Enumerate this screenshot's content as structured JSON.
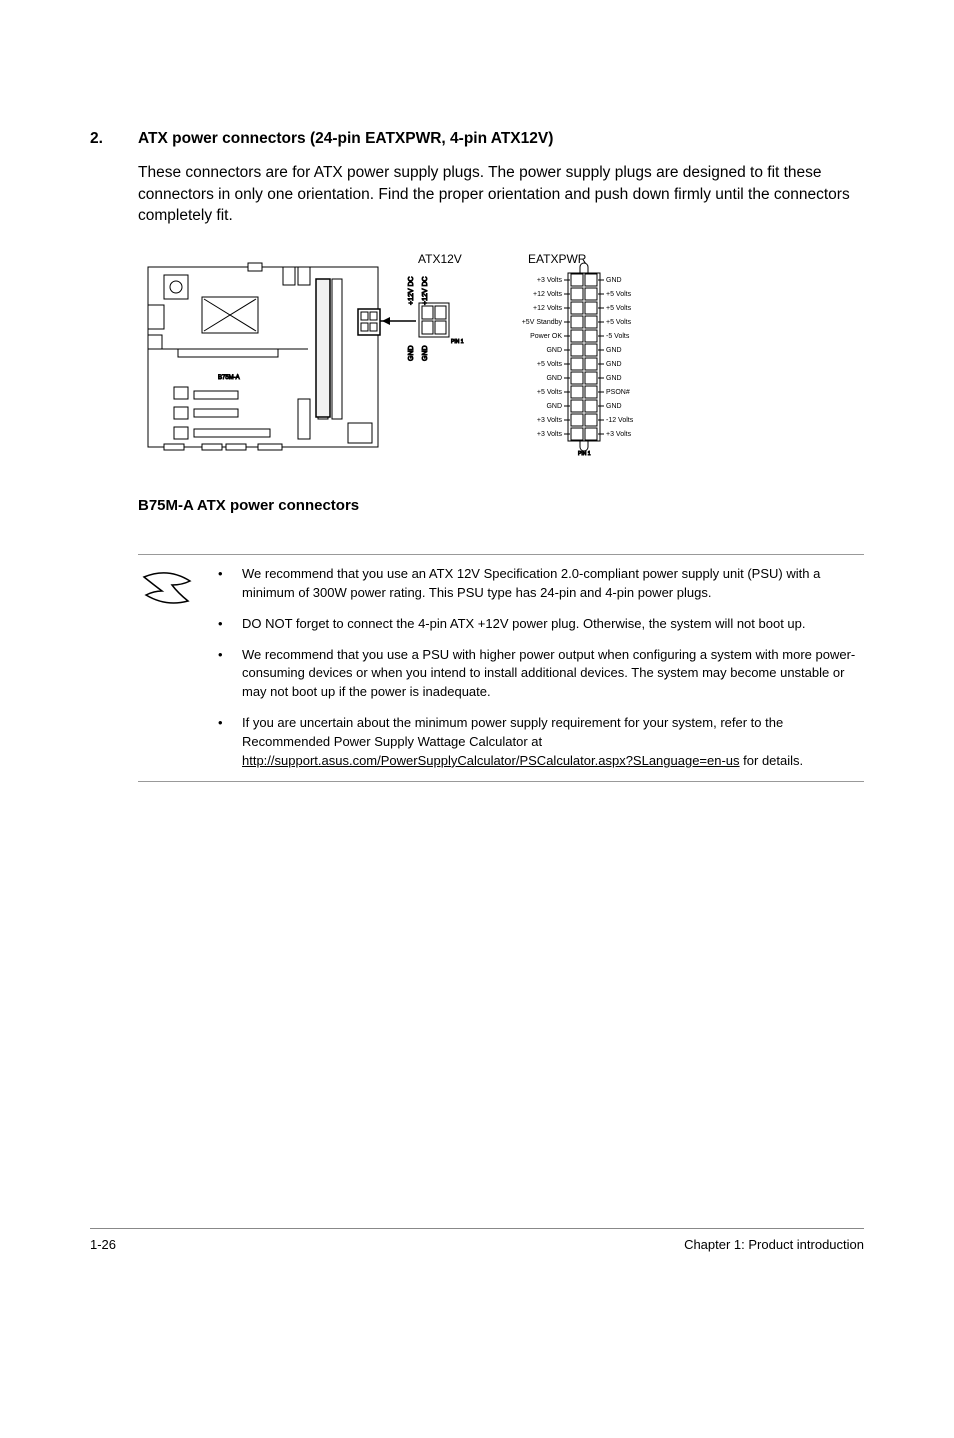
{
  "section": {
    "number": "2.",
    "title": "ATX power connectors (24-pin EATXPWR, 4-pin ATX12V)",
    "paragraph": "These connectors are for ATX power supply plugs. The power supply plugs are designed to fit these connectors in only one orientation. Find the proper orientation and push down firmly until the connectors completely fit."
  },
  "diagram": {
    "label_atx12v": "ATX12V",
    "label_eatxpwr": "EATXPWR",
    "caption": "B75M-A ATX power connectors",
    "atx12v_pins_top": [
      "+12V DC",
      "+12V DC"
    ],
    "atx12v_pins_bottom": [
      "GND",
      "GND"
    ],
    "pin1_label": "PIN 1",
    "eatxpwr_left": [
      "+3 Volts",
      "+12 Volts",
      "+12 Volts",
      "+5V Standby",
      "Power OK",
      "GND",
      "+5 Volts",
      "GND",
      "+5 Volts",
      "GND",
      "+3 Volts",
      "+3 Volts"
    ],
    "eatxpwr_right": [
      "GND",
      "+5 Volts",
      "+5 Volts",
      "+5 Volts",
      "-5 Volts",
      "GND",
      "GND",
      "GND",
      "PSON#",
      "GND",
      "-12 Volts",
      "+3 Volts"
    ],
    "board_label": "B75M-A",
    "colors": {
      "stroke": "#000000",
      "fill_light": "#ffffff",
      "fill_board": "#f6f6f6"
    }
  },
  "notes": [
    "We recommend that you use an ATX 12V Specification 2.0-compliant power supply unit (PSU) with a minimum of 300W power rating. This PSU type has 24-pin and 4-pin power plugs.",
    "DO NOT forget to connect the 4-pin ATX +12V power plug. Otherwise, the system will not boot up.",
    "We recommend that you use a PSU with higher power output when configuring a system with more power-consuming devices or when you intend to install additional devices. The system may become unstable or may not boot up if the power is inadequate.",
    "If you are uncertain about the minimum power supply requirement for your system, refer to the Recommended Power Supply Wattage Calculator at {LINK} for details."
  ],
  "note_link_text": "http://support.asus.com/PowerSupplyCalculator/PSCalculator.aspx?SLanguage=en-us",
  "footer": {
    "left": "1-26",
    "right": "Chapter 1: Product introduction"
  }
}
